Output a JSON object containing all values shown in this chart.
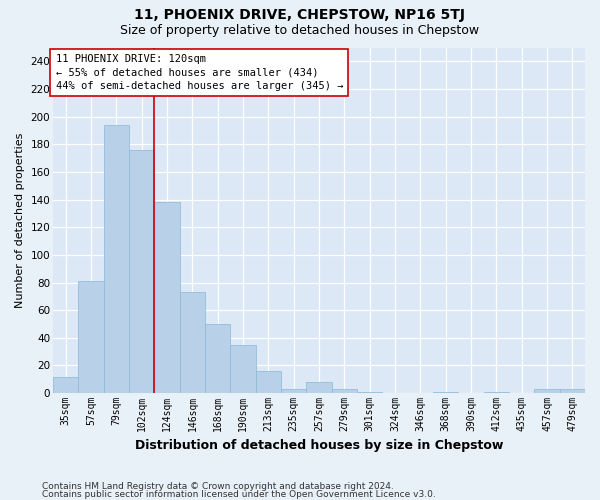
{
  "title": "11, PHOENIX DRIVE, CHEPSTOW, NP16 5TJ",
  "subtitle": "Size of property relative to detached houses in Chepstow",
  "xlabel": "Distribution of detached houses by size in Chepstow",
  "ylabel": "Number of detached properties",
  "bar_color": "#b8d0e8",
  "bar_edge_color": "#8ab8d8",
  "bg_color": "#dce8f5",
  "fig_bg_color": "#e8f0f8",
  "grid_color": "#ffffff",
  "categories": [
    "35sqm",
    "57sqm",
    "79sqm",
    "102sqm",
    "124sqm",
    "146sqm",
    "168sqm",
    "190sqm",
    "213sqm",
    "235sqm",
    "257sqm",
    "279sqm",
    "301sqm",
    "324sqm",
    "346sqm",
    "368sqm",
    "390sqm",
    "412sqm",
    "435sqm",
    "457sqm",
    "479sqm"
  ],
  "values": [
    12,
    81,
    194,
    176,
    138,
    73,
    50,
    35,
    16,
    3,
    8,
    3,
    1,
    0,
    0,
    1,
    0,
    1,
    0,
    3,
    3
  ],
  "vline_pos": 3.5,
  "vline_color": "#cc0000",
  "annotation_title": "11 PHOENIX DRIVE: 120sqm",
  "annotation_line1": "← 55% of detached houses are smaller (434)",
  "annotation_line2": "44% of semi-detached houses are larger (345) →",
  "ann_box_color": "#ffffff",
  "ann_edge_color": "#cc0000",
  "ylim_max": 250,
  "yticks": [
    0,
    20,
    40,
    60,
    80,
    100,
    120,
    140,
    160,
    180,
    200,
    220,
    240
  ],
  "footer1": "Contains HM Land Registry data © Crown copyright and database right 2024.",
  "footer2": "Contains public sector information licensed under the Open Government Licence v3.0.",
  "title_fontsize": 10,
  "subtitle_fontsize": 9,
  "ylabel_fontsize": 8,
  "xlabel_fontsize": 9,
  "tick_fontsize": 7,
  "ann_fontsize": 7.5,
  "footer_fontsize": 6.5
}
